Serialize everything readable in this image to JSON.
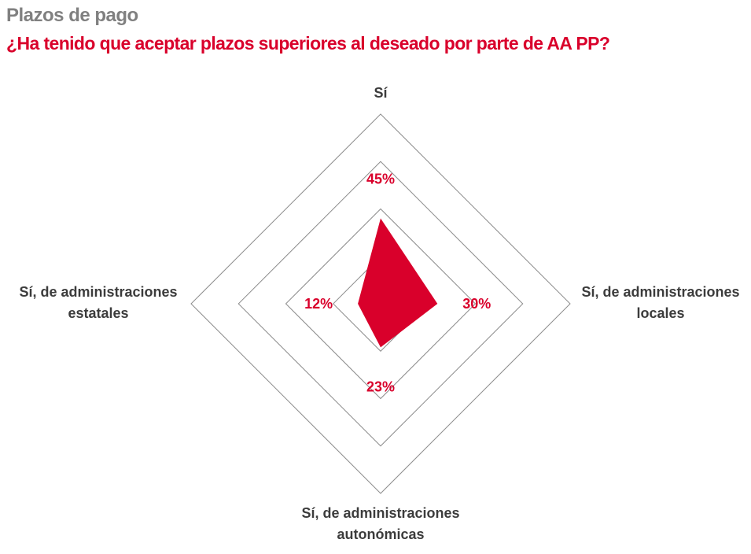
{
  "header": {
    "title": "Plazos de pago",
    "subtitle": "¿Ha tenido que aceptar plazos superiores al deseado por parte de AA PP?"
  },
  "chart_data": {
    "type": "radar",
    "title": "¿Ha tenido que aceptar plazos superiores al deseado por parte de AA PP?",
    "categories": [
      [
        "Sí"
      ],
      [
        "Sí, de administraciones",
        "locales"
      ],
      [
        "Sí, de administraciones",
        "autonómicas"
      ],
      [
        "Sí, de administraciones",
        "estatales"
      ]
    ],
    "values": [
      45,
      30,
      23,
      12
    ],
    "value_labels": [
      "45%",
      "30%",
      "23%",
      "12%"
    ],
    "range": [
      0,
      100
    ],
    "gridlines": [
      25,
      50,
      75,
      100
    ],
    "colors": {
      "fill": "#d9002b",
      "grid": "#8c8c8c",
      "title": "#808080",
      "label": "#3c3c3c"
    }
  }
}
